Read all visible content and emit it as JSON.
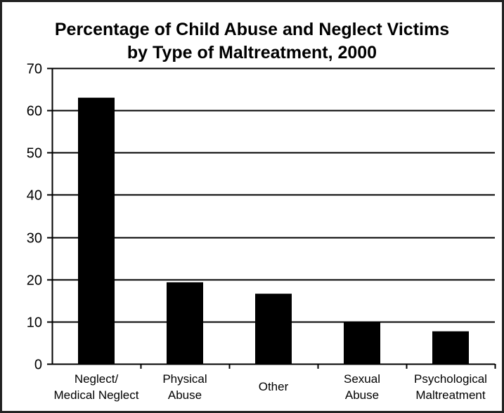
{
  "chart_data": {
    "type": "bar",
    "title": [
      "Percentage of Child Abuse and Neglect Victims",
      "by Type of Maltreatment, 2000"
    ],
    "categories": [
      [
        "Neglect/",
        "Medical Neglect"
      ],
      [
        "Physical",
        "Abuse"
      ],
      [
        "Other"
      ],
      [
        "Sexual",
        "Abuse"
      ],
      [
        "Psychological",
        "Maltreatment"
      ]
    ],
    "values": [
      63,
      19.3,
      16.6,
      10,
      7.7
    ],
    "ylim": [
      0,
      70
    ],
    "yticks": [
      0,
      10,
      20,
      30,
      40,
      50,
      60,
      70
    ],
    "ytick_labels": [
      "0",
      "10",
      "20",
      "30",
      "40",
      "50",
      "60",
      "70"
    ],
    "xlabel": "",
    "ylabel": "",
    "grid": true,
    "bar_color": "#000000",
    "grid_color": "#000000"
  }
}
